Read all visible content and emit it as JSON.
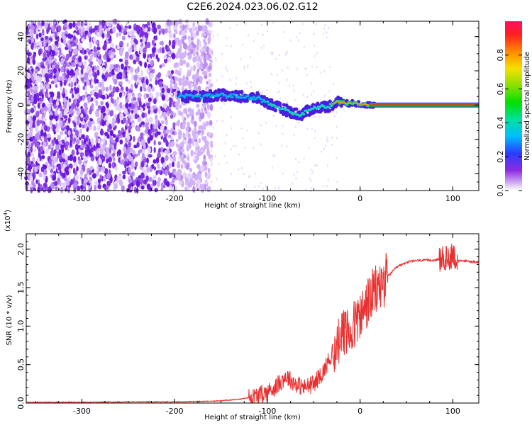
{
  "title": "C2E6.2024.023.06.02.G12",
  "chart_data": [
    {
      "type": "heatmap",
      "xlabel": "Height of straight line (km)",
      "ylabel": "Frequency (Hz)",
      "xlim": [
        -360,
        128
      ],
      "ylim": [
        -50,
        49
      ],
      "xticks": [
        -300,
        -200,
        -100,
        0,
        100
      ],
      "yticks": [
        -40,
        -20,
        0,
        20,
        40
      ],
      "colorbar": {
        "label": "Normalized spectral amplitude",
        "range": [
          0,
          1
        ],
        "ticks": [
          "0.0",
          "0.2",
          "0.4",
          "0.6",
          "0.8"
        ],
        "tick_values": [
          0.0,
          0.2,
          0.4,
          0.6,
          0.8
        ]
      },
      "signal_trace": [
        {
          "x": -195,
          "y": 5
        },
        {
          "x": -170,
          "y": 5
        },
        {
          "x": -150,
          "y": 6
        },
        {
          "x": -130,
          "y": 5
        },
        {
          "x": -110,
          "y": 4
        },
        {
          "x": -95,
          "y": 0
        },
        {
          "x": -80,
          "y": -3
        },
        {
          "x": -65,
          "y": -6
        },
        {
          "x": -55,
          "y": -3
        },
        {
          "x": -45,
          "y": -1
        },
        {
          "x": -35,
          "y": -1
        },
        {
          "x": -25,
          "y": 2
        },
        {
          "x": -15,
          "y": 1
        },
        {
          "x": -5,
          "y": 1
        },
        {
          "x": 10,
          "y": 0
        },
        {
          "x": 128,
          "y": 0
        }
      ]
    },
    {
      "type": "line",
      "xlabel": "Height of straight line (km)",
      "ylabel": "SNR (10 * v/v)",
      "scale_note": "(x10",
      "scale_exp": "4",
      "scale_close": ")",
      "xlim": [
        -360,
        128
      ],
      "ylim": [
        0,
        2.2
      ],
      "xticks": [
        -300,
        -200,
        -100,
        0,
        100
      ],
      "yticks": [
        "0.0",
        "0.5",
        "1.0",
        "1.5",
        "2.0"
      ],
      "ytick_values": [
        0.0,
        0.5,
        1.0,
        1.5,
        2.0
      ],
      "series": [
        {
          "color": "#e83030",
          "x": [
            -360,
            -300,
            -250,
            -200,
            -170,
            -150,
            -130,
            -115,
            -100,
            -90,
            -80,
            -70,
            -60,
            -50,
            -40,
            -30,
            -20,
            -10,
            0,
            10,
            20,
            30,
            40,
            50,
            60,
            80,
            95,
            100,
            105,
            110,
            128
          ],
          "y": [
            0.01,
            0.01,
            0.015,
            0.015,
            0.02,
            0.03,
            0.05,
            0.08,
            0.14,
            0.22,
            0.35,
            0.25,
            0.2,
            0.25,
            0.4,
            0.65,
            0.85,
            0.95,
            1.1,
            1.35,
            1.5,
            1.65,
            1.77,
            1.83,
            1.85,
            1.86,
            1.87,
            1.95,
            1.84,
            1.85,
            1.83
          ]
        }
      ]
    }
  ]
}
